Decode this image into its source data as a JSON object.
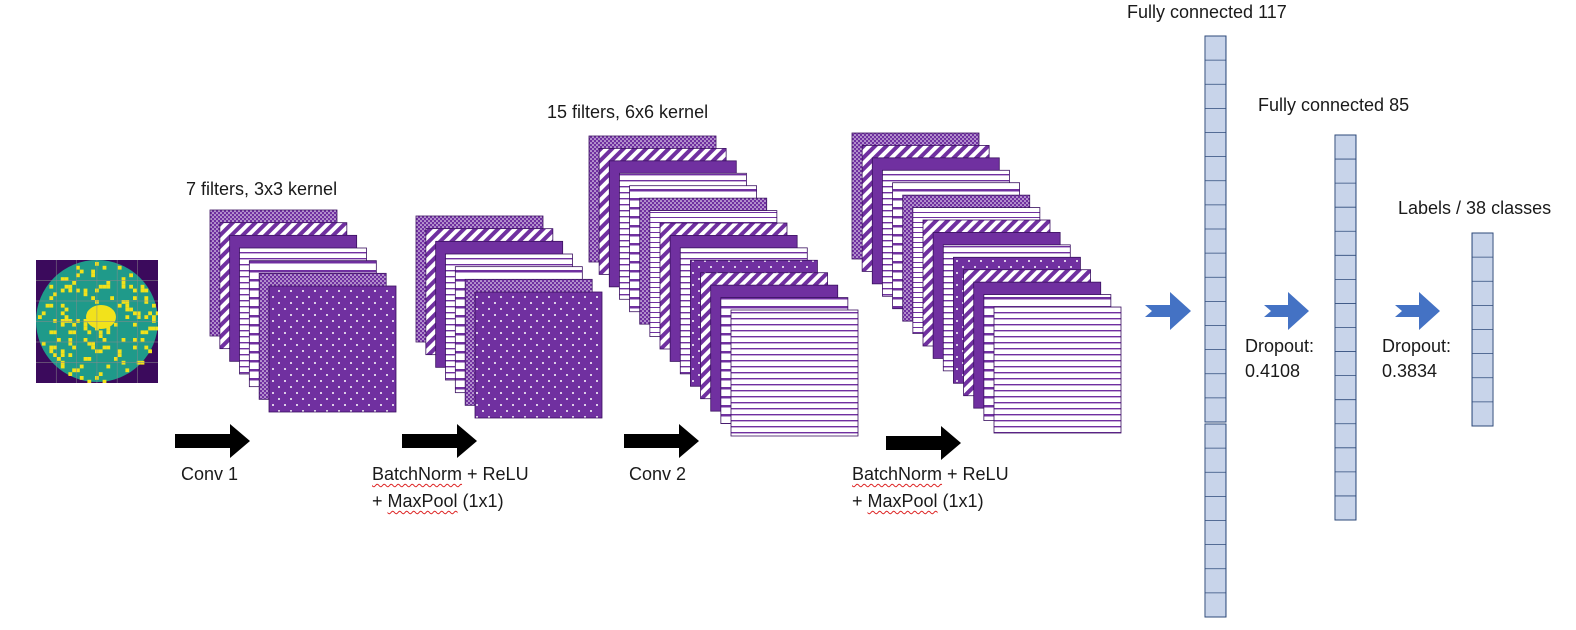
{
  "conv1": {
    "title": "7 filters, 3x3 kernel",
    "filter_count": 7,
    "arrow_label": "Conv 1"
  },
  "block1": {
    "op_word": "BatchNorm",
    "op_rest": " + ReLU",
    "pool_prefix": "+ ",
    "pool_word": "MaxPool",
    "pool_rest": " (1x1)"
  },
  "conv2": {
    "title": "15 filters, 6x6 kernel",
    "filter_count": 15,
    "arrow_label": "Conv 2"
  },
  "block2": {
    "op_word": "BatchNorm",
    "op_rest": " + ReLU",
    "pool_prefix": "+ ",
    "pool_word": "MaxPool",
    "pool_rest": " (1x1)"
  },
  "fc1": {
    "title": "Fully connected 117"
  },
  "dropout1": {
    "label": "Dropout:",
    "value": "0.4108"
  },
  "fc2": {
    "title": "Fully connected 85"
  },
  "dropout2": {
    "label": "Dropout:",
    "value": "0.3834"
  },
  "output": {
    "title": "Labels / 38 classes"
  },
  "colors": {
    "filter_purple": "#7030a0",
    "flow_arrow": "#000000",
    "dense_arrow": "#4472c4",
    "dense_fill": "#dae3f3",
    "wafer_background": "#3b0a5c",
    "wafer_teal": "#1f9a8a",
    "wafer_yellow": "#f2e21b"
  }
}
